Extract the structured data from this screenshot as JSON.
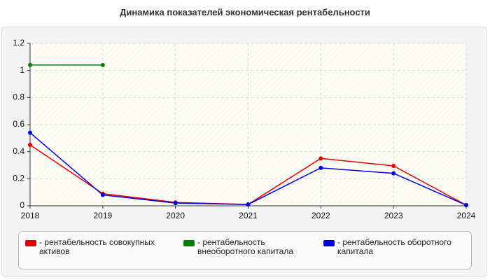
{
  "chart_data": {
    "type": "line",
    "title": "Динамика показателей экономическая рентабельности",
    "x": [
      2018,
      2019,
      2020,
      2021,
      2022,
      2023,
      2024
    ],
    "xlim": [
      2018,
      2024
    ],
    "xticks": [
      2018,
      2019,
      2020,
      2021,
      2022,
      2023,
      2024
    ],
    "ylim": [
      0,
      1.2
    ],
    "yticks": [
      0,
      0.2,
      0.4,
      0.6,
      0.8,
      1,
      1.2
    ],
    "grid": true,
    "series": [
      {
        "name": "- рентабельность совокупных активов",
        "color": "#e00000",
        "values": [
          0.45,
          0.09,
          0.025,
          0.01,
          0.35,
          0.295,
          0.005
        ]
      },
      {
        "name": "- рентабельность внеоборотного капитала",
        "color": "#008000",
        "values": [
          1.04,
          1.04,
          null,
          null,
          null,
          null,
          null
        ]
      },
      {
        "name": "- рентабельность оборотного капитала",
        "color": "#0000e0",
        "values": [
          0.54,
          0.08,
          0.02,
          0.01,
          0.28,
          0.24,
          0.005
        ]
      }
    ]
  }
}
